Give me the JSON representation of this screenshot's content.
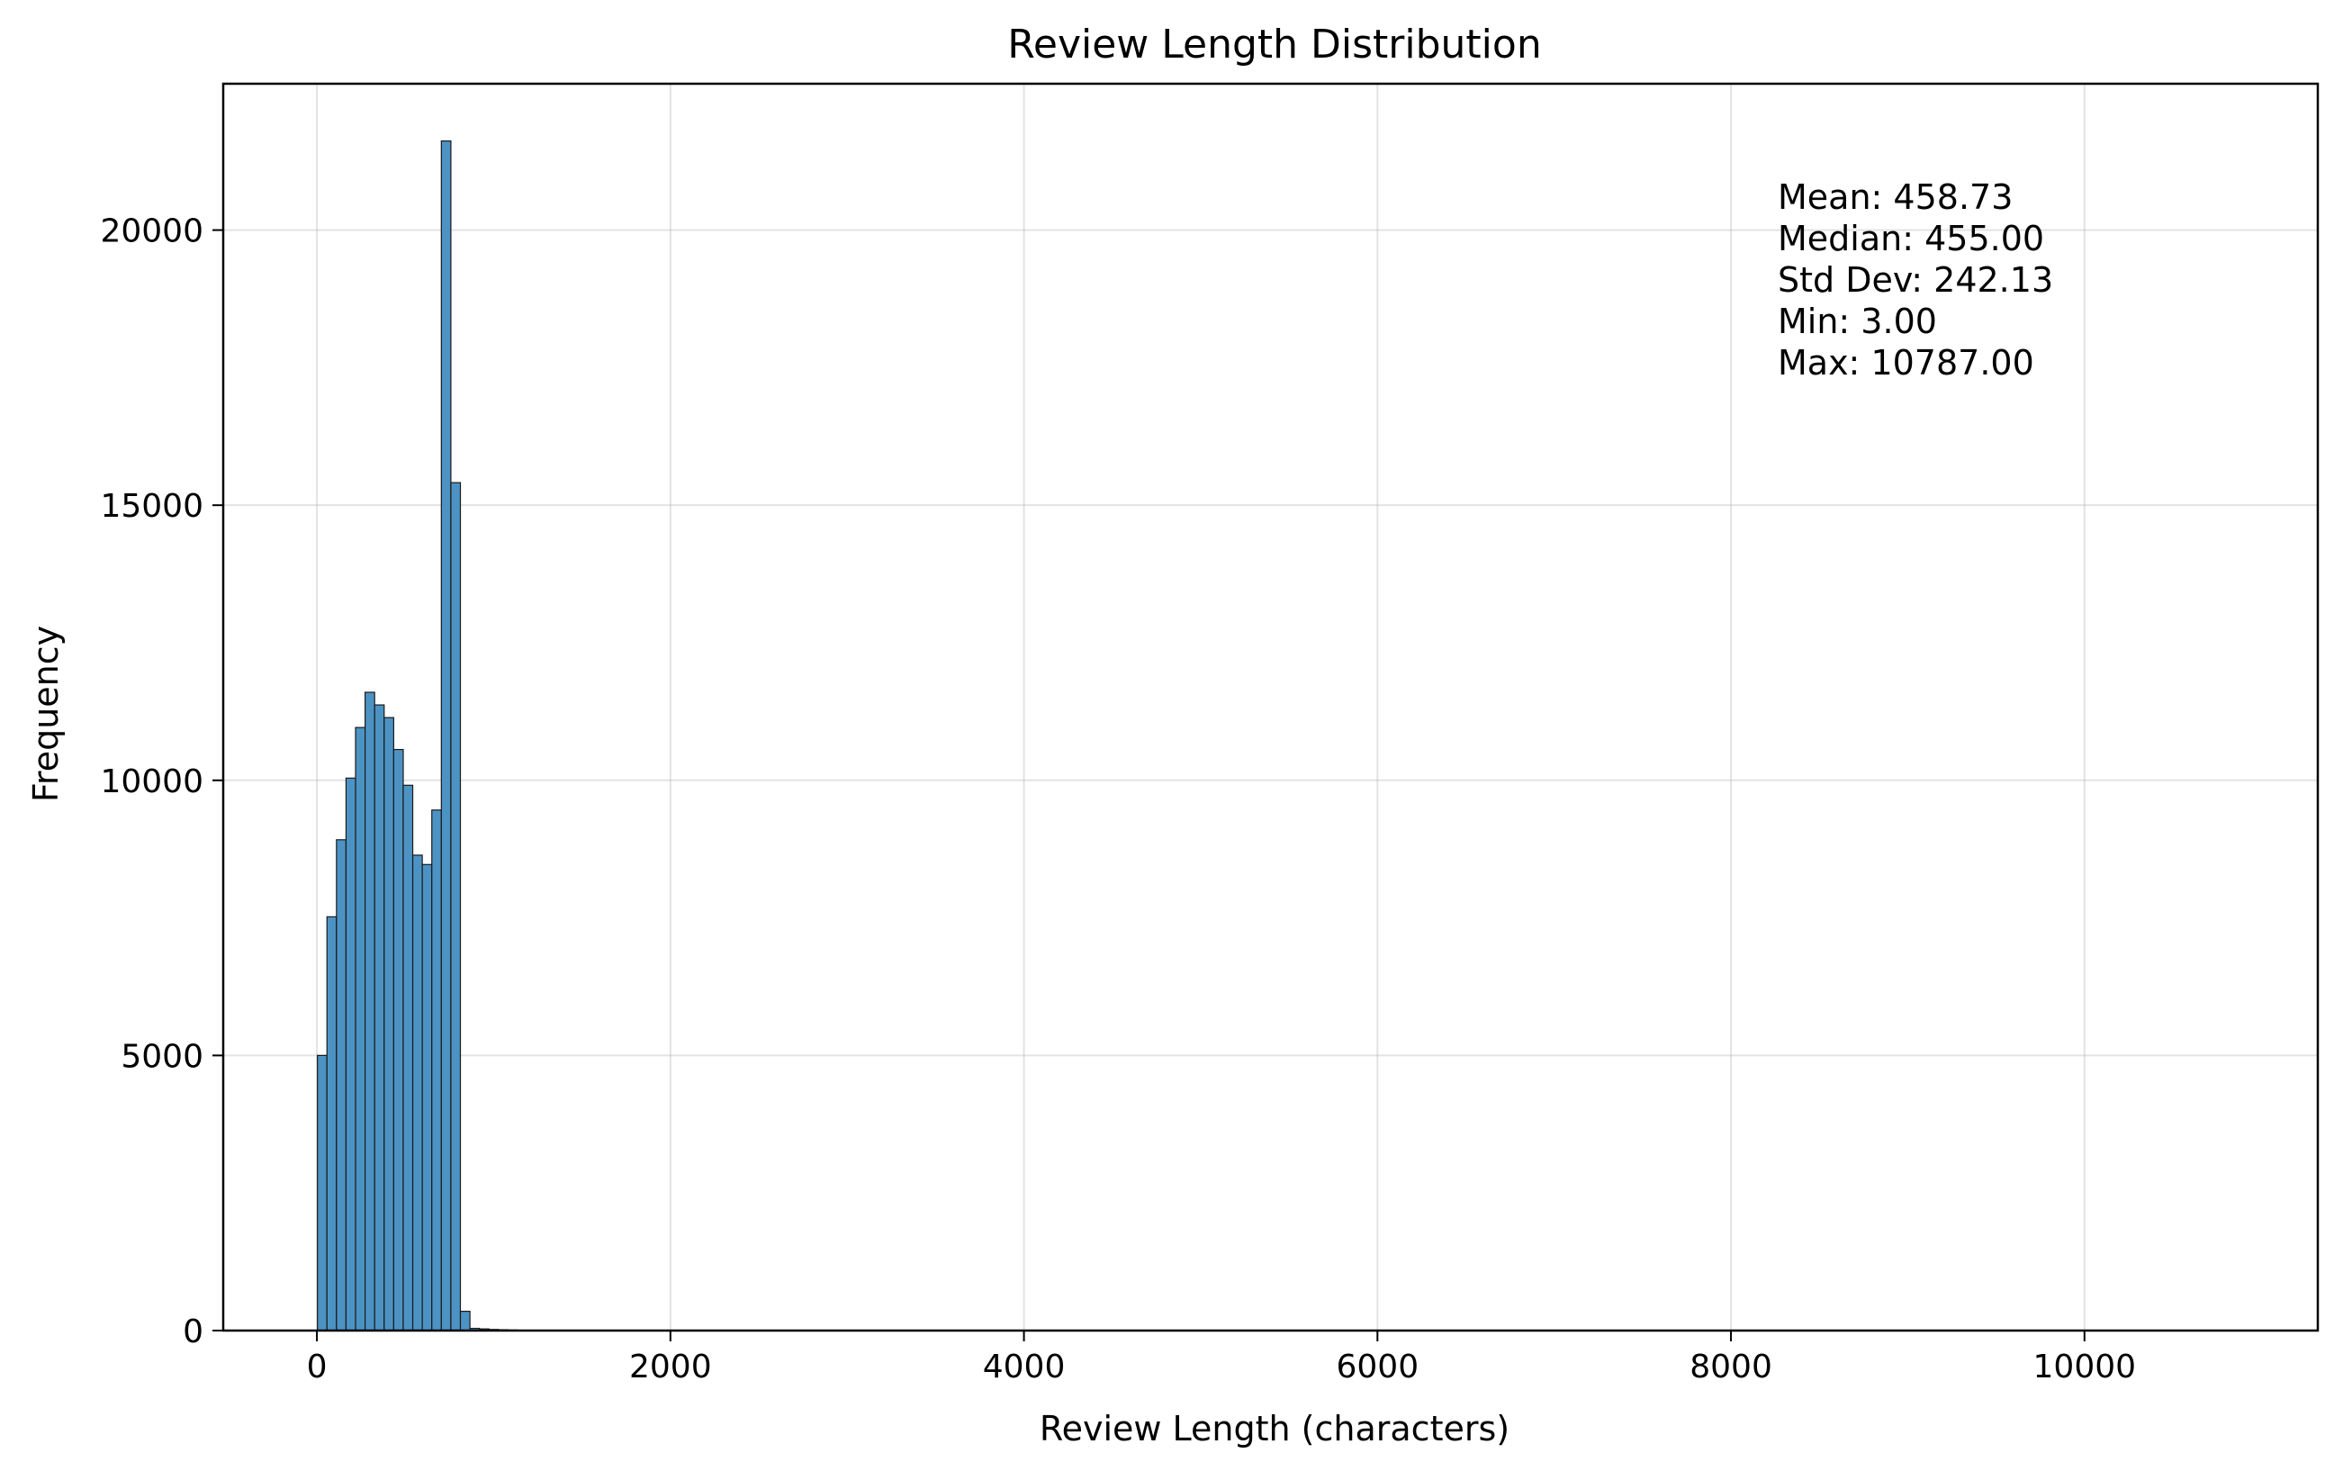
{
  "chart_data": {
    "type": "bar",
    "subtype": "histogram",
    "title": "Review Length Distribution",
    "xlabel": "Review Length (characters)",
    "ylabel": "Frequency",
    "xlim": [
      -530,
      11320
    ],
    "ylim": [
      0,
      22660
    ],
    "xticks": [
      0,
      2000,
      4000,
      6000,
      8000,
      10000
    ],
    "yticks": [
      0,
      5000,
      10000,
      15000,
      20000
    ],
    "grid": true,
    "bar_color": "#4c93c4",
    "edge_color": "#1a1a1a",
    "bin_width": 53.92,
    "bin_start": 3,
    "bins": [
      {
        "x": 3,
        "value": 5000
      },
      {
        "x": 56.9,
        "value": 7520
      },
      {
        "x": 110.8,
        "value": 8920
      },
      {
        "x": 164.8,
        "value": 10040
      },
      {
        "x": 218.7,
        "value": 10960
      },
      {
        "x": 272.6,
        "value": 11600
      },
      {
        "x": 326.5,
        "value": 11370
      },
      {
        "x": 380.5,
        "value": 11140
      },
      {
        "x": 434.4,
        "value": 10560
      },
      {
        "x": 488.3,
        "value": 9910
      },
      {
        "x": 542.2,
        "value": 8640
      },
      {
        "x": 596.2,
        "value": 8470
      },
      {
        "x": 650.1,
        "value": 9460
      },
      {
        "x": 704,
        "value": 21620
      },
      {
        "x": 757.9,
        "value": 15410
      },
      {
        "x": 811.9,
        "value": 350
      },
      {
        "x": 865.8,
        "value": 40
      },
      {
        "x": 919.7,
        "value": 30
      },
      {
        "x": 973.6,
        "value": 20
      },
      {
        "x": 1027.6,
        "value": 15
      },
      {
        "x": 1081.5,
        "value": 10
      }
    ],
    "annotation": {
      "lines": [
        "Mean: 458.73",
        "Median: 455.00",
        "Std Dev: 242.13",
        "Min: 3.00",
        "Max: 10787.00"
      ]
    }
  }
}
